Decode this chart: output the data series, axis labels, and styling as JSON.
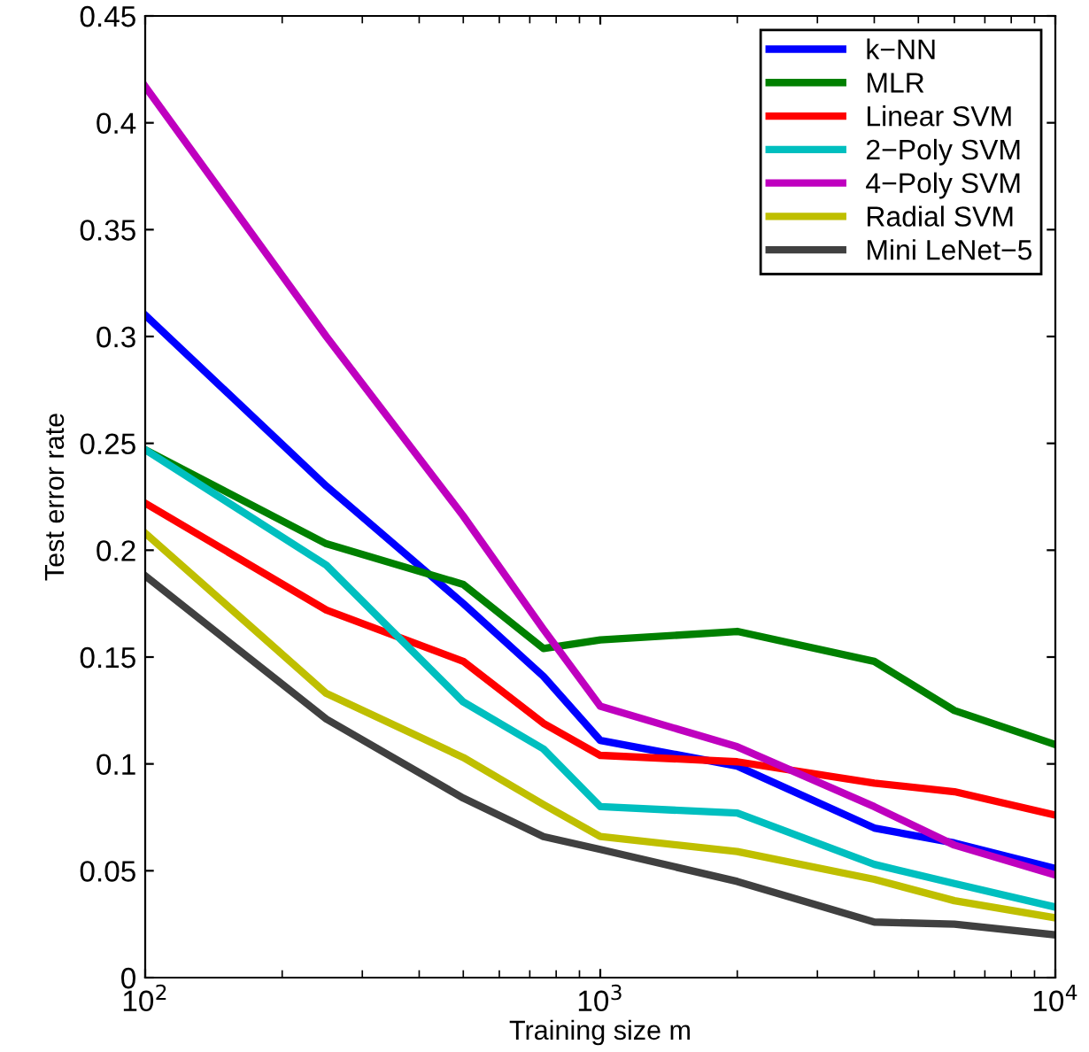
{
  "chart_data": {
    "type": "line",
    "xlabel": "Training size m",
    "ylabel": "Test error rate",
    "x": [
      100,
      250,
      500,
      750,
      1000,
      2000,
      4000,
      6000,
      10000
    ],
    "log": "x",
    "xlim": [
      100,
      10000
    ],
    "xticks": [
      {
        "value": 100,
        "label": "10$^{2}$"
      },
      {
        "value": 1000,
        "label": "10$^{3}$"
      },
      {
        "value": 10000,
        "label": "10$^{4}$"
      }
    ],
    "ylim": [
      0,
      0.45
    ],
    "yticks": [
      0,
      0.05,
      0.1,
      0.15,
      0.2,
      0.25,
      0.3,
      0.35,
      0.4,
      0.45
    ],
    "grid": false,
    "legend": "top right",
    "marker": "none",
    "line_style": "solid",
    "series": [
      {
        "name": "k−NN",
        "color": "#0000ff",
        "values": [
          0.31,
          0.23,
          0.175,
          0.141,
          0.111,
          0.099,
          0.07,
          0.063,
          0.051
        ]
      },
      {
        "name": "MLR",
        "color": "#008000",
        "values": [
          0.247,
          0.203,
          0.184,
          0.154,
          0.158,
          0.162,
          0.148,
          0.125,
          0.109
        ]
      },
      {
        "name": "Linear SVM",
        "color": "#ff0000",
        "values": [
          0.222,
          0.172,
          0.148,
          0.119,
          0.104,
          0.101,
          0.091,
          0.087,
          0.076
        ]
      },
      {
        "name": "2−Poly SVM",
        "color": "#00bfbf",
        "values": [
          0.247,
          0.193,
          0.129,
          0.107,
          0.08,
          0.077,
          0.053,
          0.044,
          0.033
        ]
      },
      {
        "name": "4−Poly SVM",
        "color": "#bf00bf",
        "values": [
          0.417,
          0.3,
          0.216,
          0.163,
          0.127,
          0.108,
          0.08,
          0.062,
          0.048
        ]
      },
      {
        "name": "Radial SVM",
        "color": "#bfbf00",
        "values": [
          0.208,
          0.133,
          0.103,
          0.081,
          0.066,
          0.059,
          0.046,
          0.036,
          0.028
        ]
      },
      {
        "name": "Mini LeNet−5",
        "color": "#404040",
        "values": [
          0.188,
          0.121,
          0.084,
          0.066,
          0.06,
          0.045,
          0.026,
          0.025,
          0.02
        ]
      }
    ]
  }
}
